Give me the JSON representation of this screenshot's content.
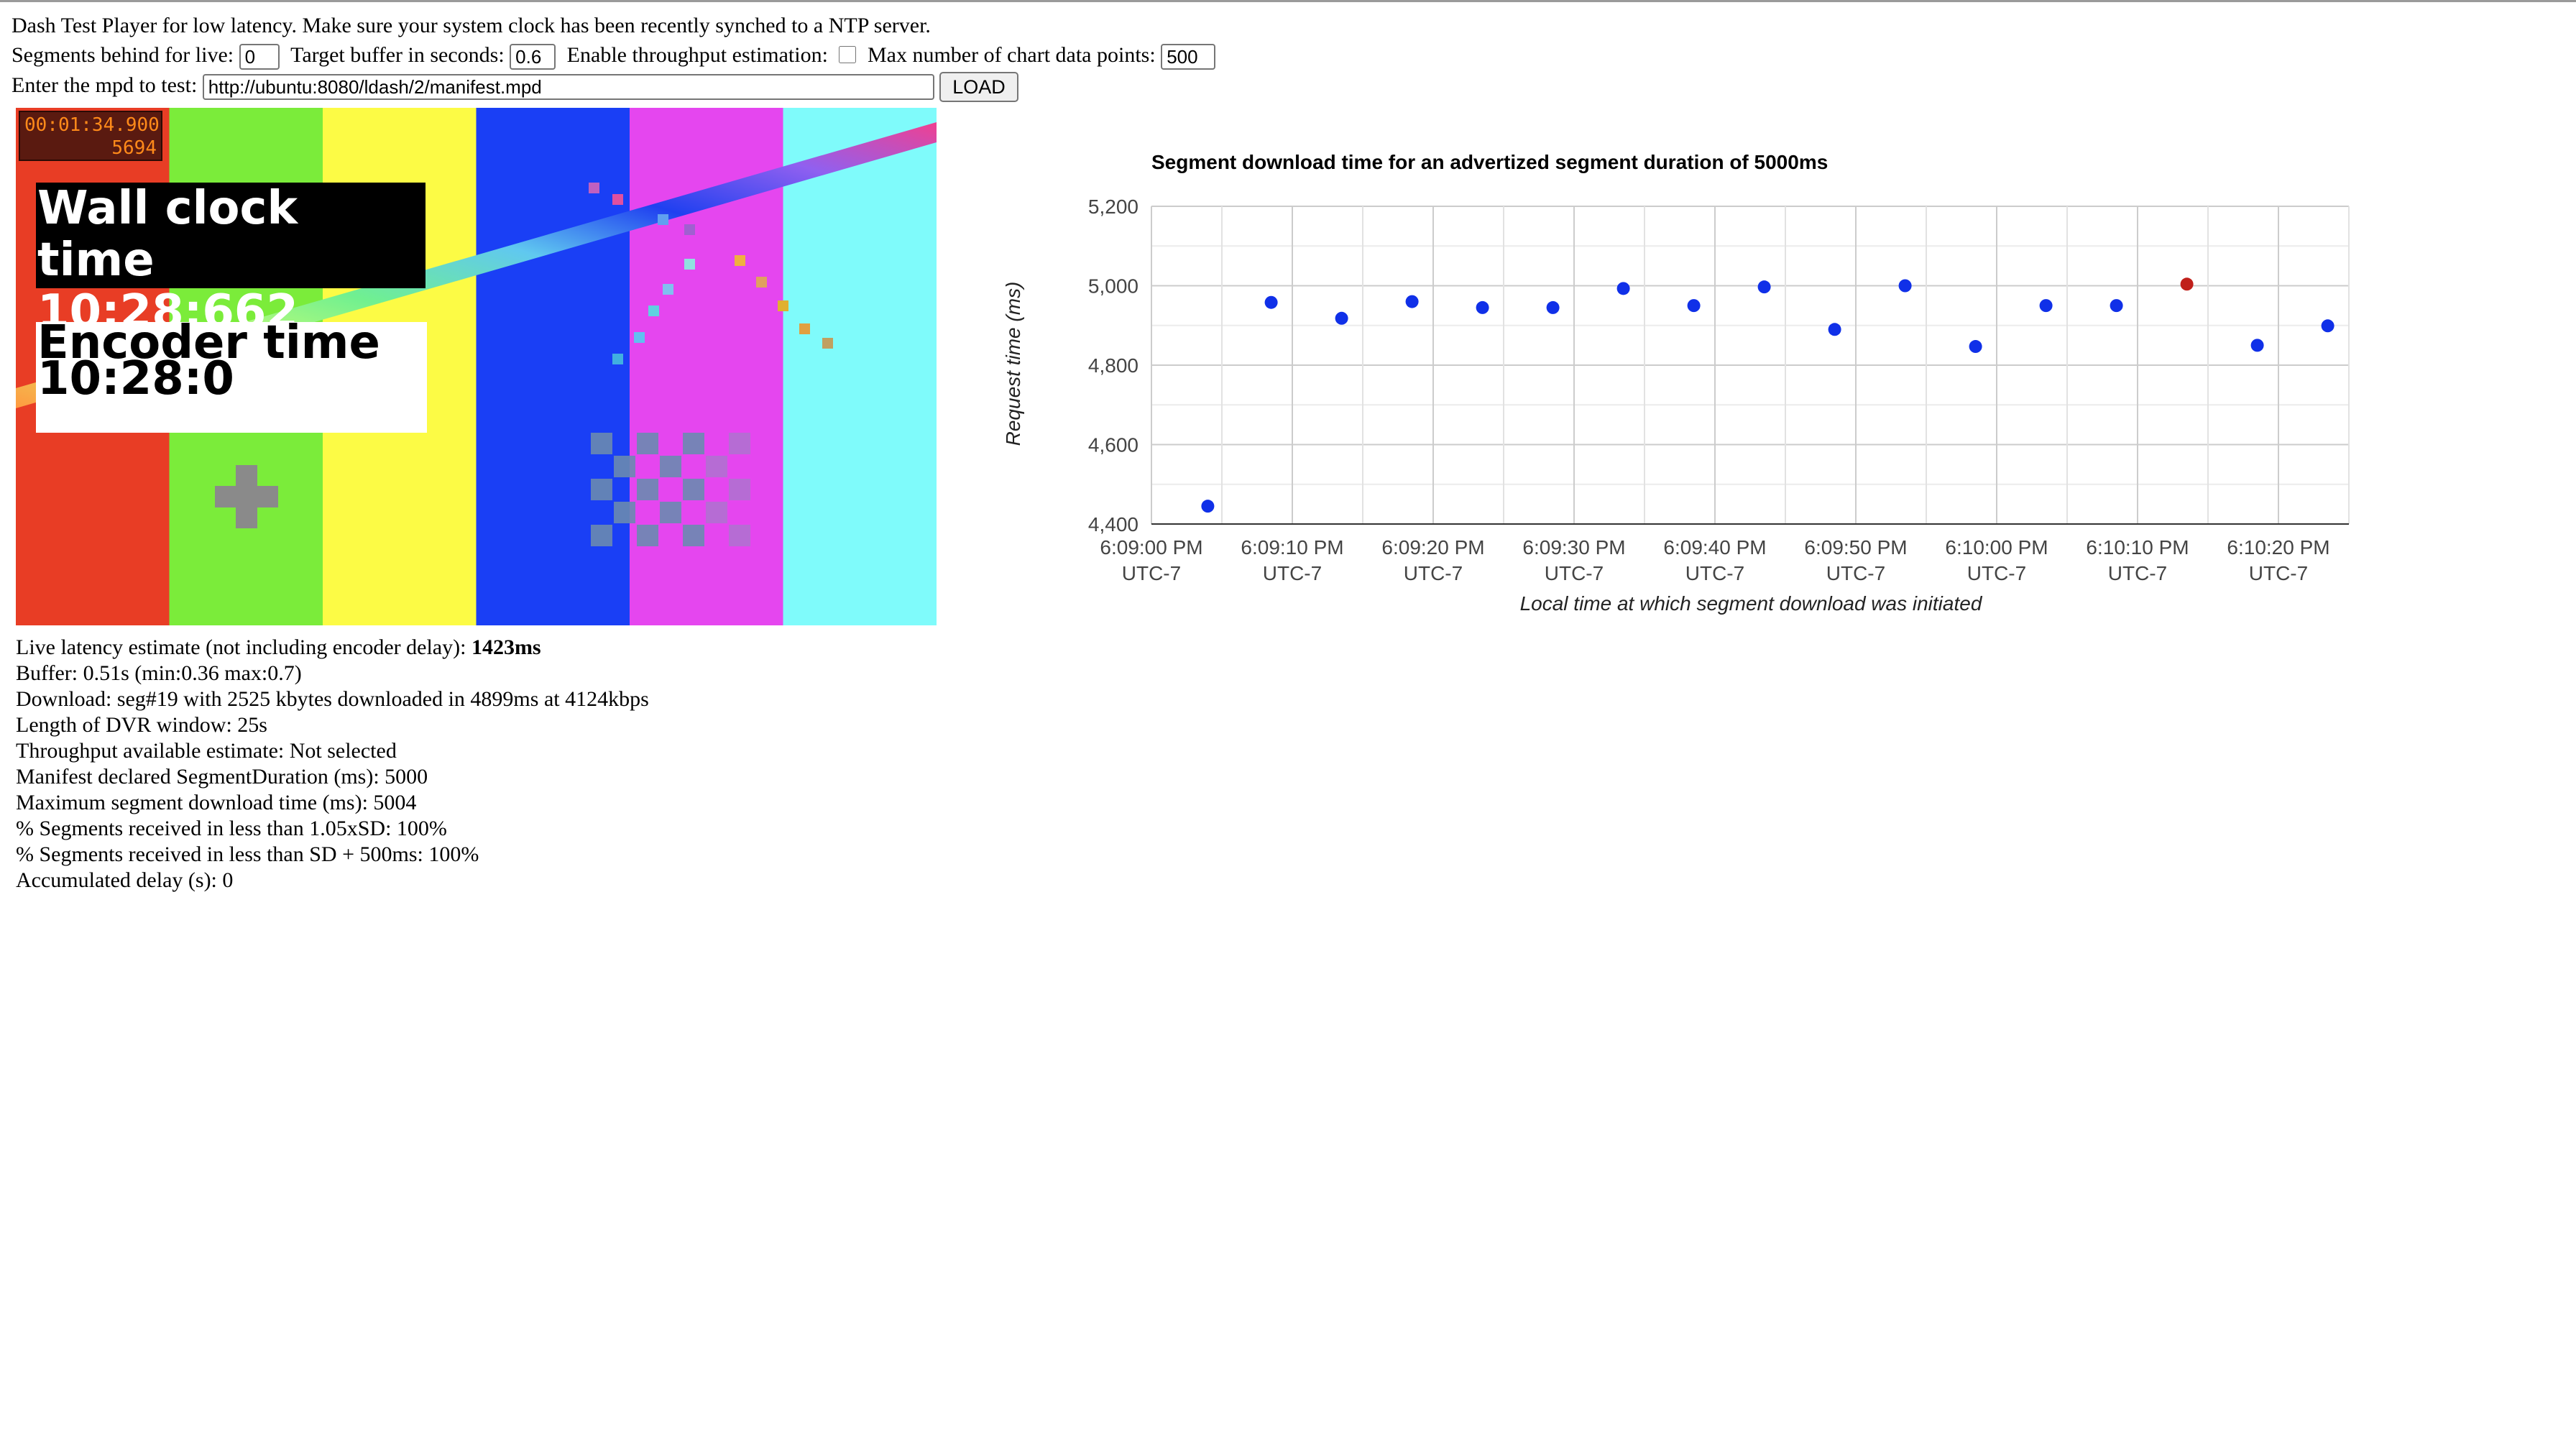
{
  "header": {
    "intro": "Dash Test Player for low latency. Make sure your system clock has been recently synched to a NTP server."
  },
  "controls": {
    "segments_behind_label": "Segments behind for live:",
    "segments_behind_value": "0",
    "target_buffer_label": "Target buffer in seconds:",
    "target_buffer_value": "0.6",
    "throughput_label": "Enable throughput estimation:",
    "throughput_checked": false,
    "max_points_label": "Max number of chart data points:",
    "max_points_value": "500",
    "mpd_label": "Enter the mpd to test:",
    "mpd_value": "http://ubuntu:8080/ldash/2/manifest.mpd",
    "load_label": "LOAD"
  },
  "video": {
    "counter_time": "00:01:34.900",
    "counter_frame": "5694",
    "wall_clock_label": "Wall clock time",
    "wall_clock_value": "10:28:662",
    "encoder_label": "Encoder time",
    "encoder_value": "10:28:0",
    "bar_colors": [
      "#e83d25",
      "#7bec3a",
      "#fcfb45",
      "#1a3ff5",
      "#e546ef",
      "#7ffbfb"
    ]
  },
  "stats": {
    "latency_label": "Live latency estimate (not including encoder delay): ",
    "latency_value": "1423ms",
    "lines": [
      "Buffer: 0.51s (min:0.36 max:0.7)",
      "Download: seg#19 with 2525 kbytes downloaded in 4899ms at 4124kbps",
      "Length of DVR window: 25s",
      "Throughput available estimate: Not selected",
      "Manifest declared SegmentDuration (ms): 5000",
      "Maximum segment download time (ms): 5004",
      "% Segments received in less than 1.05xSD: 100%",
      "% Segments received in less than SD + 500ms: 100%",
      "Accumulated delay (s): 0"
    ]
  },
  "chart_data": {
    "type": "scatter",
    "title": "Segment download time for an advertized segment duration of 5000ms",
    "xlabel": "Local time at which segment download was initiated",
    "ylabel": "Request time (ms)",
    "x_tick_labels": [
      [
        "6:09:00 PM",
        "UTC-7"
      ],
      [
        "6:09:10 PM",
        "UTC-7"
      ],
      [
        "6:09:20 PM",
        "UTC-7"
      ],
      [
        "6:09:30 PM",
        "UTC-7"
      ],
      [
        "6:09:40 PM",
        "UTC-7"
      ],
      [
        "6:09:50 PM",
        "UTC-7"
      ],
      [
        "6:10:00 PM",
        "UTC-7"
      ],
      [
        "6:10:10 PM",
        "UTC-7"
      ],
      [
        "6:10:20 PM",
        "UTC-7"
      ]
    ],
    "x_range_seconds_after_first_tick": [
      0,
      85
    ],
    "y_ticks": [
      "4,400",
      "4,600",
      "4,800",
      "5,000",
      "5,200"
    ],
    "y_tick_values": [
      4400,
      4600,
      4800,
      5000,
      5200
    ],
    "ylim": [
      4400,
      5200
    ],
    "grid": true,
    "point_color": "#1030e8",
    "highlight_color": "#c0201a",
    "points": [
      {
        "t": 4,
        "ms": 4445
      },
      {
        "t": 8.5,
        "ms": 4958
      },
      {
        "t": 13.5,
        "ms": 4918
      },
      {
        "t": 18.5,
        "ms": 4960
      },
      {
        "t": 23.5,
        "ms": 4945
      },
      {
        "t": 28.5,
        "ms": 4945
      },
      {
        "t": 33.5,
        "ms": 4993
      },
      {
        "t": 38.5,
        "ms": 4950
      },
      {
        "t": 43.5,
        "ms": 4997
      },
      {
        "t": 48.5,
        "ms": 4890
      },
      {
        "t": 53.5,
        "ms": 5000
      },
      {
        "t": 58.5,
        "ms": 4847
      },
      {
        "t": 63.5,
        "ms": 4950
      },
      {
        "t": 68.5,
        "ms": 4950
      },
      {
        "t": 73.5,
        "ms": 5004,
        "max": true
      },
      {
        "t": 78.5,
        "ms": 4850
      },
      {
        "t": 83.5,
        "ms": 4899
      }
    ]
  }
}
